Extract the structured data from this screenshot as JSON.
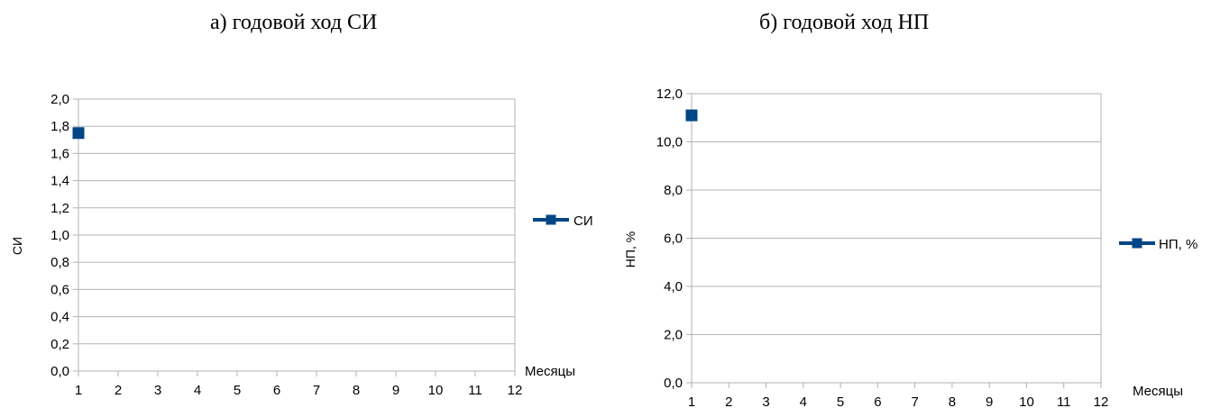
{
  "charts": [
    {
      "heading": "а) годовой ход СИ",
      "ylabel": "СИ",
      "xlabel": "Месяцы",
      "legend": "СИ",
      "yticks": [
        "0,0",
        "0,2",
        "0,4",
        "0,6",
        "0,8",
        "1,0",
        "1,2",
        "1,4",
        "1,6",
        "1,8",
        "2,0"
      ],
      "xticks": [
        "1",
        "2",
        "3",
        "4",
        "5",
        "6",
        "7",
        "8",
        "9",
        "10",
        "11",
        "12"
      ]
    },
    {
      "heading": "б) годовой ход НП",
      "ylabel": "НП, %",
      "xlabel": "Месяцы",
      "legend": "НП, %",
      "yticks": [
        "0,0",
        "2,0",
        "4,0",
        "6,0",
        "8,0",
        "10,0",
        "12,0"
      ],
      "xticks": [
        "1",
        "2",
        "3",
        "4",
        "5",
        "6",
        "7",
        "8",
        "9",
        "10",
        "11",
        "12"
      ]
    }
  ],
  "colors": {
    "series": "#004586",
    "grid": "#b3b3b3"
  },
  "chart_data": [
    {
      "type": "line",
      "title": "а) годовой ход СИ",
      "xlabel": "Месяцы",
      "ylabel": "СИ",
      "ylim": [
        0,
        2.0
      ],
      "xlim": [
        1,
        12
      ],
      "grid": true,
      "legend_position": "right",
      "series": [
        {
          "name": "СИ",
          "x": [
            1
          ],
          "y": [
            1.75
          ],
          "marker": "square"
        }
      ]
    },
    {
      "type": "line",
      "title": "б) годовой ход НП",
      "xlabel": "Месяцы",
      "ylabel": "НП, %",
      "ylim": [
        0,
        12.0
      ],
      "xlim": [
        1,
        12
      ],
      "grid": true,
      "legend_position": "right",
      "series": [
        {
          "name": "НП, %",
          "x": [
            1
          ],
          "y": [
            11.1
          ],
          "marker": "square"
        }
      ]
    }
  ]
}
